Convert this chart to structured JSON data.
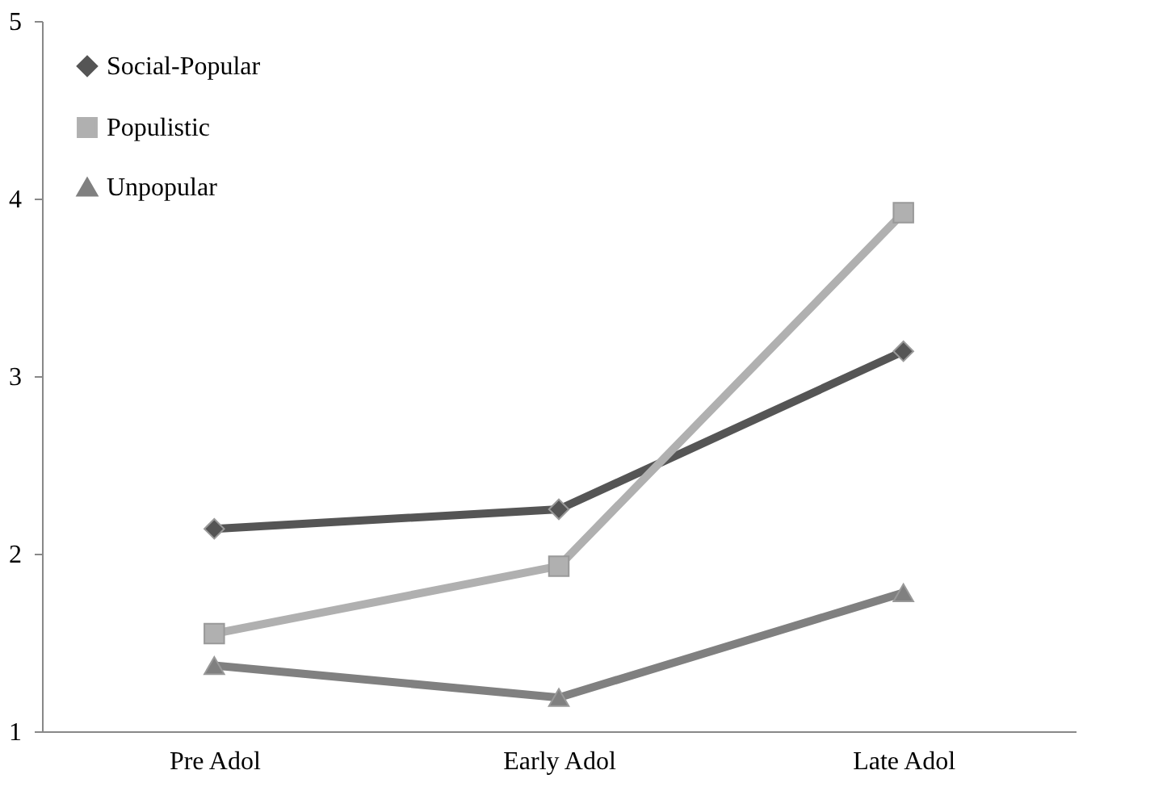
{
  "chart_data": {
    "type": "line",
    "categories": [
      "Pre Adol",
      "Early Adol",
      "Late Adol"
    ],
    "series": [
      {
        "name": "Social-Popular",
        "color": "#555555",
        "marker": "diamond",
        "values": [
          2.14,
          2.25,
          3.14
        ]
      },
      {
        "name": "Populistic",
        "color": "#b0b0b0",
        "marker": "square",
        "values": [
          1.55,
          1.93,
          3.92
        ]
      },
      {
        "name": "Unpopular",
        "color": "#808080",
        "marker": "triangle",
        "values": [
          1.37,
          1.19,
          1.78
        ]
      }
    ],
    "ylim": [
      1,
      5
    ],
    "yticks": [
      1,
      2,
      3,
      4,
      5
    ],
    "grid": false,
    "legend": "top left",
    "line_style": "solid"
  }
}
